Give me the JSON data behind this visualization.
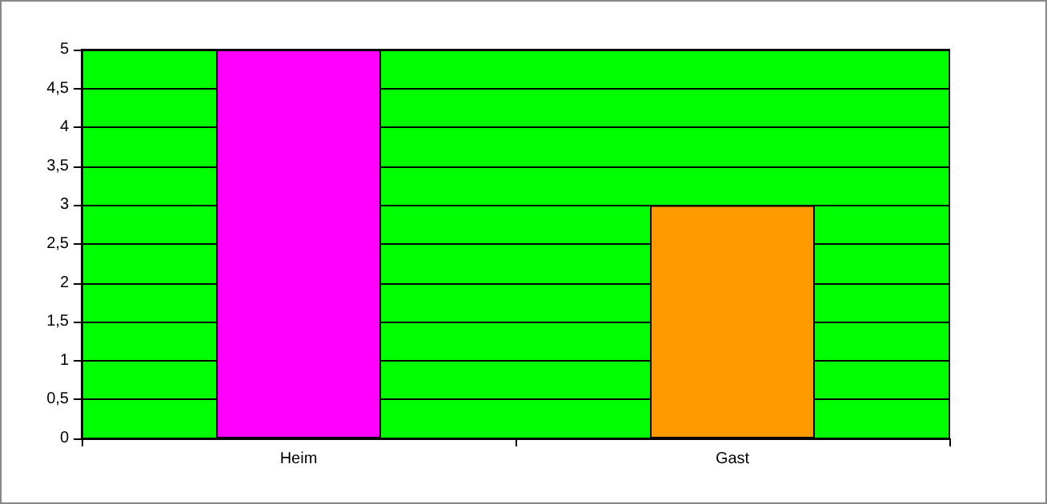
{
  "chart_data": {
    "type": "bar",
    "categories": [
      "Heim",
      "Gast"
    ],
    "values": [
      5,
      3
    ],
    "colors": [
      "#ff00ff",
      "#ff9900"
    ],
    "ylim": [
      0,
      5
    ],
    "yticks": [
      0,
      {
        "value": 0.5,
        "label": "0,5"
      },
      1,
      {
        "value": 1.5,
        "label": "1,5"
      },
      2,
      {
        "value": 2.5,
        "label": "2,5"
      },
      3,
      {
        "value": 3.5,
        "label": "3,5"
      },
      4,
      {
        "value": 4.5,
        "label": "4,5"
      },
      5
    ],
    "grid": "y"
  }
}
